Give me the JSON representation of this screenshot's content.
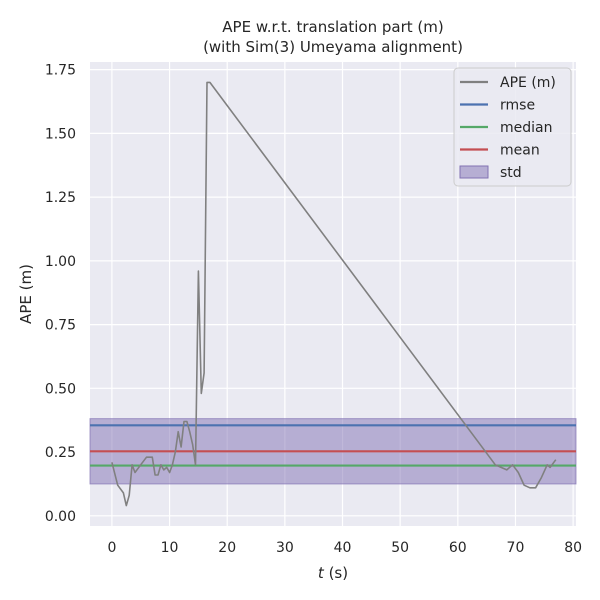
{
  "chart_data": {
    "type": "line",
    "title_line1": "APE w.r.t. translation part (m)",
    "title_line2": "(with Sim(3) Umeyama alignment)",
    "xlabel_var": "t",
    "xlabel_unit": " (s)",
    "ylabel": "APE (m)",
    "xlim": [
      -3.8,
      80.5
    ],
    "ylim": [
      -0.04,
      1.78
    ],
    "xticks": [
      0,
      10,
      20,
      30,
      40,
      50,
      60,
      70,
      80
    ],
    "yticks": [
      0.0,
      0.25,
      0.5,
      0.75,
      1.0,
      1.25,
      1.5,
      1.75
    ],
    "ytick_labels": [
      "0.00",
      "0.25",
      "0.50",
      "0.75",
      "1.00",
      "1.25",
      "1.50",
      "1.75"
    ],
    "series": [
      {
        "name": "APE (m)",
        "color": "#808080",
        "x": [
          0,
          1,
          2,
          2.5,
          3,
          3.5,
          4,
          5,
          6,
          7,
          7.5,
          8,
          8.5,
          9,
          9.5,
          10,
          10.5,
          11,
          11.5,
          12,
          12.5,
          13,
          13.5,
          14,
          14.5,
          15,
          15.5,
          16,
          16.5,
          17,
          66.5,
          67.5,
          68.5,
          69.5,
          70.5,
          71.5,
          72.5,
          73.5,
          74.5,
          75.5,
          76,
          77
        ],
        "y": [
          0.21,
          0.12,
          0.09,
          0.04,
          0.08,
          0.2,
          0.17,
          0.2,
          0.23,
          0.23,
          0.16,
          0.16,
          0.2,
          0.18,
          0.19,
          0.17,
          0.2,
          0.25,
          0.33,
          0.27,
          0.37,
          0.37,
          0.33,
          0.28,
          0.2,
          0.96,
          0.48,
          0.56,
          1.7,
          1.7,
          0.2,
          0.19,
          0.18,
          0.2,
          0.17,
          0.12,
          0.11,
          0.11,
          0.15,
          0.2,
          0.19,
          0.22
        ]
      }
    ],
    "hlines": [
      {
        "name": "rmse",
        "value": 0.355,
        "color": "#4c72b0"
      },
      {
        "name": "median",
        "value": 0.197,
        "color": "#55a868"
      },
      {
        "name": "mean",
        "value": 0.253,
        "color": "#c44e52"
      }
    ],
    "std_band": {
      "name": "std",
      "low": 0.125,
      "high": 0.381,
      "color": "#8172b3"
    },
    "legend": {
      "position": "top-right",
      "entries": [
        {
          "label": "APE (m)",
          "kind": "line",
          "color": "#808080"
        },
        {
          "label": "rmse",
          "kind": "line",
          "color": "#4c72b0"
        },
        {
          "label": "median",
          "kind": "line",
          "color": "#55a868"
        },
        {
          "label": "mean",
          "kind": "line",
          "color": "#c44e52"
        },
        {
          "label": "std",
          "kind": "patch",
          "color": "#8172b3"
        }
      ]
    },
    "style": {
      "plot_bg": "#eaeaf2",
      "grid": true,
      "grid_color": "#ffffff"
    }
  }
}
